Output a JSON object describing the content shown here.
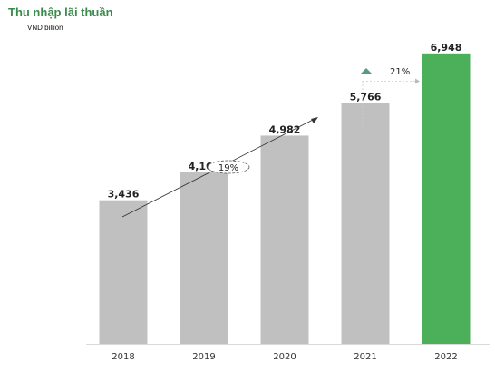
{
  "chart_data": {
    "type": "bar",
    "title": "Thu nhập lãi thuần",
    "subtitle": "VND billion",
    "categories": [
      "2018",
      "2019",
      "2020",
      "2021",
      "2022"
    ],
    "values": [
      3436,
      4101,
      4982,
      5766,
      6948
    ],
    "value_labels": [
      "3,436",
      "4,101",
      "4,982",
      "5,766",
      "6,948"
    ],
    "ylim": [
      0,
      7400
    ],
    "grid": false,
    "annotations": {
      "trend_growth": "19%",
      "yoy_growth": "21%"
    },
    "colors": {
      "bar_default": "#c0c0c0",
      "bar_highlight": "#4caf59",
      "highlight_index": 4,
      "title": "#3a8a4a",
      "up_arrow": "#5a9a80"
    }
  }
}
